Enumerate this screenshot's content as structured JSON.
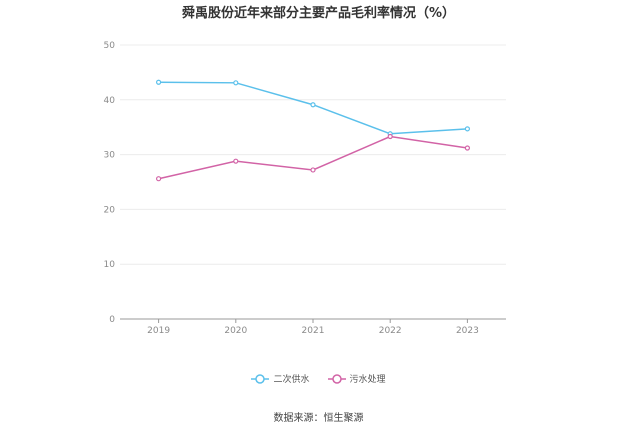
{
  "chart_data": {
    "type": "line",
    "title": "舜禹股份近年来部分主要产品毛利率情况（%）",
    "xlabel": "",
    "ylabel": "",
    "categories": [
      "2019",
      "2020",
      "2021",
      "2022",
      "2023"
    ],
    "ylim": [
      0,
      50
    ],
    "yticks": [
      0,
      10,
      20,
      30,
      40,
      50
    ],
    "grid": true,
    "legend_position": "bottom",
    "series": [
      {
        "name": "二次供水",
        "color": "#5bc0eb",
        "values": [
          43.2,
          43.1,
          39.1,
          33.8,
          34.7
        ]
      },
      {
        "name": "污水处理",
        "color": "#d263a6",
        "values": [
          25.6,
          28.8,
          27.2,
          33.3,
          31.2
        ]
      }
    ]
  },
  "source": "数据来源：恒生聚源"
}
